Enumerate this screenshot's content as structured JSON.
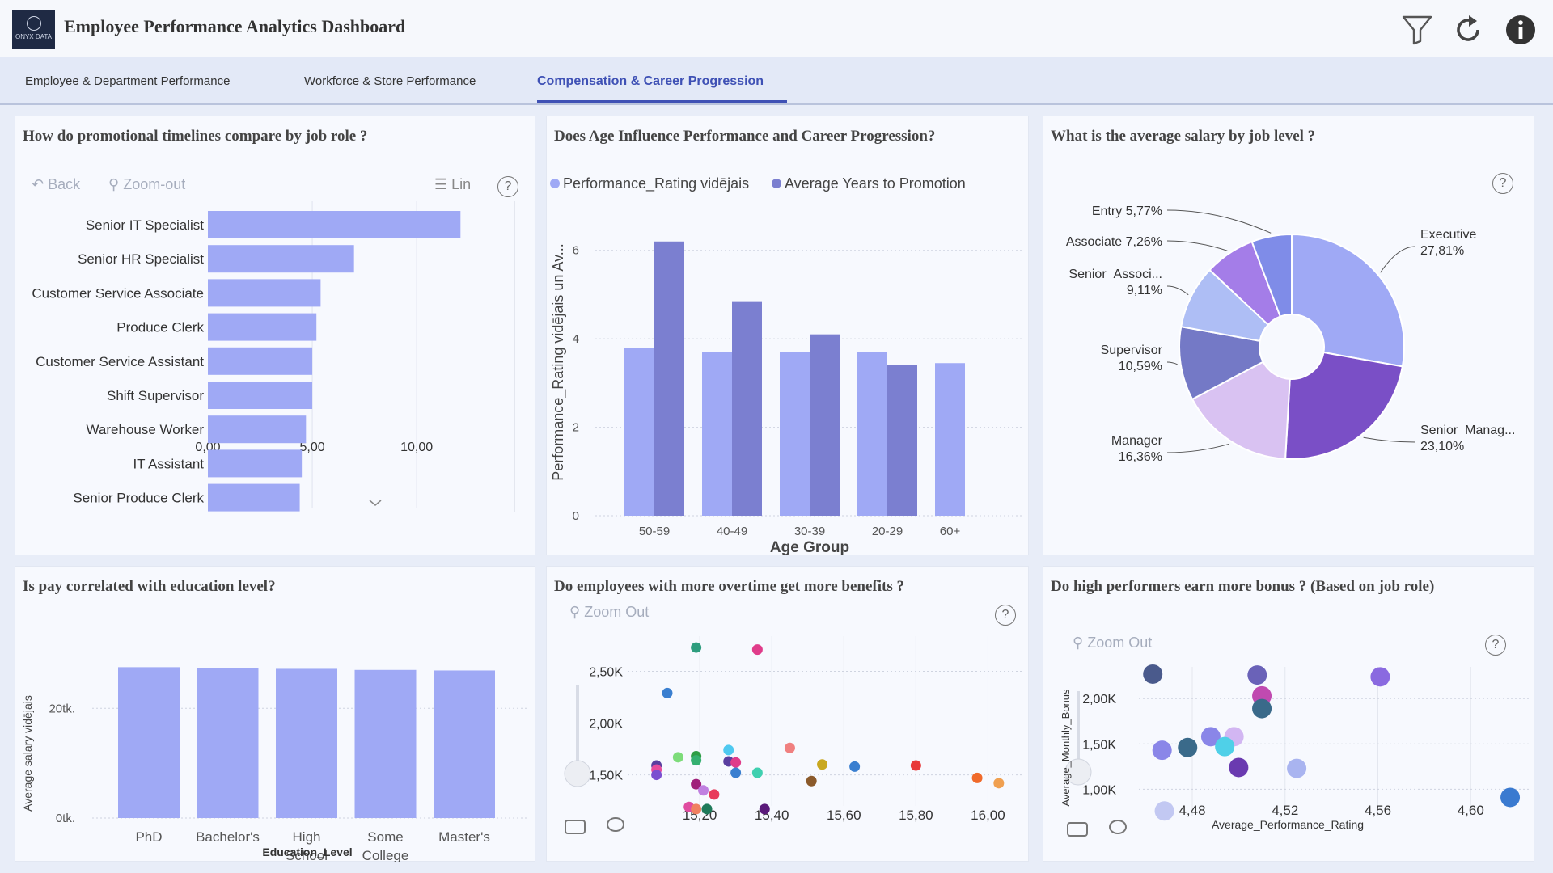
{
  "header": {
    "logo_text": "ONYX DATA",
    "title": "Employee Performance Analytics Dashboard",
    "icons": [
      "filter-icon",
      "refresh-icon",
      "info-icon"
    ]
  },
  "tabs": [
    {
      "label": "Employee & Department Performance",
      "active": false
    },
    {
      "label": "Workforce & Store Performance",
      "active": false
    },
    {
      "label": "Compensation & Career Progression",
      "active": true
    }
  ],
  "colors": {
    "accent": "#3f51b5",
    "bar_light": "#9fa9f5",
    "bar_dark": "#7b7fd0",
    "card_bg": "#f7f9fe"
  },
  "promo": {
    "title": "How do promotional timelines compare by job role ?",
    "toolbar": {
      "back": "Back",
      "zoom_out": "Zoom-out",
      "scale": "Lin",
      "help": "?"
    },
    "chart_data": {
      "type": "bar",
      "orientation": "horizontal",
      "categories": [
        "Senior IT Specialist",
        "Senior HR Specialist",
        "Customer Service Associate",
        "Produce Clerk",
        "Customer Service Assistant",
        "Shift Supervisor",
        "Warehouse Worker",
        "IT Assistant",
        "Senior Produce Clerk"
      ],
      "values": [
        12.1,
        7.0,
        5.4,
        5.2,
        5.0,
        5.0,
        4.7,
        4.5,
        4.4
      ],
      "ticks": [
        "0,00",
        "5,00",
        "10,00"
      ],
      "xlim": [
        0,
        14.8
      ]
    }
  },
  "age": {
    "title": "Does Age Influence Performance and Career Progression?",
    "chart_data": {
      "type": "bar",
      "categories": [
        "50-59",
        "40-49",
        "30-39",
        "20-29",
        "60+"
      ],
      "series": [
        {
          "name": "Performance_Rating vidējais",
          "values": [
            3.8,
            3.7,
            3.7,
            3.7,
            3.45
          ]
        },
        {
          "name": "Average Years to Promotion",
          "values": [
            6.2,
            4.85,
            4.1,
            3.4,
            null
          ]
        }
      ],
      "xlabel": "Age Group",
      "ylabel": "Performance_Rating vidējais un Av...",
      "yticks": [
        "0",
        "2",
        "4",
        "6"
      ],
      "ylim": [
        0,
        7
      ]
    }
  },
  "salary": {
    "title": "What is the average salary by job level ?",
    "help": "?",
    "chart_data": {
      "type": "pie",
      "donut": true,
      "slices": [
        {
          "label": "Executive",
          "pct_label": "27,81%",
          "value": 27.81,
          "color": "#9fa9f5"
        },
        {
          "label": "Senior_Manag...",
          "pct_label": "23,10%",
          "value": 23.1,
          "color": "#7a4fc6"
        },
        {
          "label": "Manager",
          "pct_label": "16,36%",
          "value": 16.36,
          "color": "#d9c2f2"
        },
        {
          "label": "Supervisor",
          "pct_label": "10,59%",
          "value": 10.59,
          "color": "#7479c6"
        },
        {
          "label": "Senior_Associ...",
          "pct_label": "9,11%",
          "value": 9.11,
          "color": "#aebef5"
        },
        {
          "label": "Associate",
          "pct_label": "7,26%",
          "value": 7.26,
          "color": "#a47de8"
        },
        {
          "label": "Entry",
          "pct_label": "5,77%",
          "value": 5.77,
          "color": "#7f8ce8"
        }
      ]
    }
  },
  "edu": {
    "title": "Is pay correlated with education level?",
    "chart_data": {
      "type": "bar",
      "categories": [
        "PhD",
        "Bachelor's",
        "High School",
        "Some College",
        "Master's"
      ],
      "category_lines": [
        [
          "PhD"
        ],
        [
          "Bachelor's"
        ],
        [
          "High",
          "School"
        ],
        [
          "Some",
          "College"
        ],
        [
          "Master's"
        ]
      ],
      "values": [
        27500,
        27400,
        27200,
        27000,
        26900
      ],
      "yticks": [
        "0tk.",
        "20tk."
      ],
      "ylim": [
        0,
        28000
      ],
      "xlabel": "Education_Level",
      "ylabel": "Average salary vidējais"
    }
  },
  "overtime": {
    "title": "Do employees with more overtime get more benefits ?",
    "toolbar": {
      "zoom_out": "Zoom Out",
      "help": "?"
    },
    "chart_data": {
      "type": "scatter",
      "xticks": [
        "15,20",
        "15,40",
        "15,60",
        "15,80",
        "16,00"
      ],
      "yticks": [
        "1,50K",
        "2,00K",
        "2,50K"
      ],
      "xlim": [
        15.0,
        16.1
      ],
      "ylim": [
        1200,
        2840
      ],
      "points": [
        {
          "x": 15.19,
          "y": 2730,
          "color": "#2e9d7e"
        },
        {
          "x": 15.36,
          "y": 2710,
          "color": "#e03c8a"
        },
        {
          "x": 15.11,
          "y": 2290,
          "color": "#3a7fd0"
        },
        {
          "x": 15.08,
          "y": 1590,
          "color": "#5a3fa0"
        },
        {
          "x": 15.08,
          "y": 1550,
          "color": "#e84c9c"
        },
        {
          "x": 15.08,
          "y": 1500,
          "color": "#7b4fd0"
        },
        {
          "x": 15.14,
          "y": 1670,
          "color": "#7ddc7a"
        },
        {
          "x": 15.19,
          "y": 1680,
          "color": "#2e9d45"
        },
        {
          "x": 15.19,
          "y": 1640,
          "color": "#35b070"
        },
        {
          "x": 15.28,
          "y": 1740,
          "color": "#4fc9f0"
        },
        {
          "x": 15.28,
          "y": 1630,
          "color": "#5a3fa0"
        },
        {
          "x": 15.3,
          "y": 1620,
          "color": "#e03c8a"
        },
        {
          "x": 15.3,
          "y": 1520,
          "color": "#3a7fd0"
        },
        {
          "x": 15.36,
          "y": 1520,
          "color": "#3fd0b0"
        },
        {
          "x": 15.45,
          "y": 1760,
          "color": "#f08080"
        },
        {
          "x": 15.54,
          "y": 1600,
          "color": "#c9a820"
        },
        {
          "x": 15.51,
          "y": 1440,
          "color": "#8b5a2b"
        },
        {
          "x": 15.63,
          "y": 1580,
          "color": "#3a7fd0"
        },
        {
          "x": 15.8,
          "y": 1590,
          "color": "#e83a3a"
        },
        {
          "x": 15.97,
          "y": 1470,
          "color": "#f06a2a"
        },
        {
          "x": 16.03,
          "y": 1420,
          "color": "#f0a050"
        },
        {
          "x": 15.19,
          "y": 1410,
          "color": "#a0207a"
        },
        {
          "x": 15.21,
          "y": 1350,
          "color": "#c080e0"
        },
        {
          "x": 15.24,
          "y": 1310,
          "color": "#e83a5a"
        },
        {
          "x": 15.17,
          "y": 1190,
          "color": "#e04ca0"
        },
        {
          "x": 15.19,
          "y": 1170,
          "color": "#f08060"
        },
        {
          "x": 15.22,
          "y": 1170,
          "color": "#1f7a5a"
        },
        {
          "x": 15.38,
          "y": 1170,
          "color": "#5a1a7a"
        }
      ]
    }
  },
  "bonus": {
    "title": "Do high performers earn more bonus ? (Based on job role)",
    "toolbar": {
      "zoom_out": "Zoom Out",
      "help": "?"
    },
    "chart_data": {
      "type": "scatter",
      "xlabel": "Average_Performance_Rating",
      "ylabel": "Average_Monthly_Bonus",
      "xticks": [
        "4,48",
        "4,52",
        "4,56",
        "4,60"
      ],
      "yticks": [
        "1,00K",
        "1,50K",
        "2,00K"
      ],
      "xlim": [
        4.457,
        4.625
      ],
      "ylim": [
        700,
        2350
      ],
      "points": [
        {
          "x": 4.463,
          "y": 2270,
          "color": "#4a5a8c"
        },
        {
          "x": 4.508,
          "y": 2260,
          "color": "#6a62b8"
        },
        {
          "x": 4.561,
          "y": 2240,
          "color": "#8a6ae0"
        },
        {
          "x": 4.51,
          "y": 2030,
          "color": "#c04ab0"
        },
        {
          "x": 4.51,
          "y": 1890,
          "color": "#3a6a8a"
        },
        {
          "x": 4.488,
          "y": 1580,
          "color": "#8a86e8"
        },
        {
          "x": 4.498,
          "y": 1580,
          "color": "#d2b6f2"
        },
        {
          "x": 4.494,
          "y": 1470,
          "color": "#4fd0e8"
        },
        {
          "x": 4.478,
          "y": 1460,
          "color": "#3a6a8a"
        },
        {
          "x": 4.467,
          "y": 1430,
          "color": "#8a86e8"
        },
        {
          "x": 4.5,
          "y": 1240,
          "color": "#6a3ab0"
        },
        {
          "x": 4.525,
          "y": 1230,
          "color": "#a9b4f0"
        },
        {
          "x": 4.617,
          "y": 910,
          "color": "#3a7ad0"
        },
        {
          "x": 4.468,
          "y": 760,
          "color": "#c2c8f2"
        }
      ]
    }
  }
}
